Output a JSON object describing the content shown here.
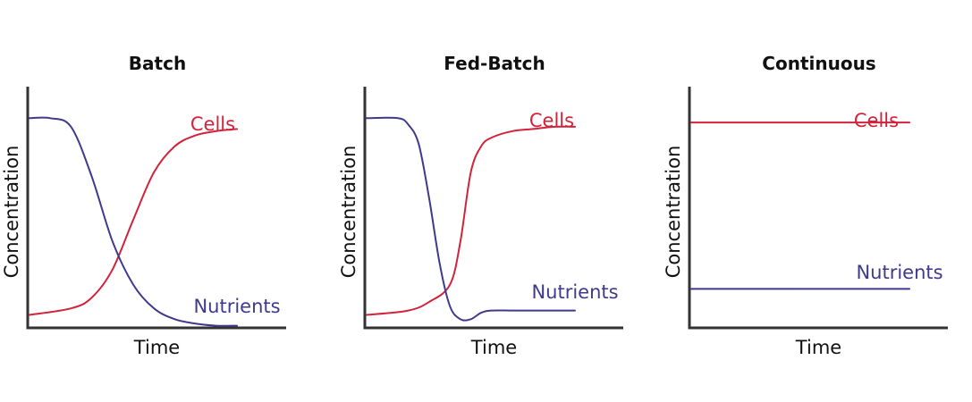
{
  "colors": {
    "cells": "#d2233a",
    "nutrients": "#3f3a8c",
    "axis": "#333333"
  },
  "chart_data": [
    {
      "type": "line",
      "title": "Batch",
      "xlabel": "Time",
      "ylabel": "Concentration",
      "grid": false,
      "series": [
        {
          "name": "Cells",
          "x": [
            0,
            0.2,
            0.3,
            0.4,
            0.5,
            0.6,
            0.7,
            0.8,
            0.9,
            1.0
          ],
          "y": [
            0.06,
            0.09,
            0.14,
            0.27,
            0.5,
            0.72,
            0.84,
            0.89,
            0.91,
            0.92
          ]
        },
        {
          "name": "Nutrients",
          "x": [
            0,
            0.1,
            0.2,
            0.3,
            0.4,
            0.5,
            0.6,
            0.7,
            0.8,
            0.9,
            1.0
          ],
          "y": [
            0.97,
            0.97,
            0.93,
            0.7,
            0.4,
            0.2,
            0.09,
            0.04,
            0.02,
            0.01,
            0.01
          ]
        }
      ]
    },
    {
      "type": "line",
      "title": "Fed-Batch",
      "xlabel": "Time",
      "ylabel": "Concentration",
      "grid": false,
      "series": [
        {
          "name": "Cells",
          "x": [
            0,
            0.2,
            0.3,
            0.4,
            0.45,
            0.5,
            0.55,
            0.6,
            0.7,
            0.8,
            0.9,
            1.0
          ],
          "y": [
            0.06,
            0.08,
            0.12,
            0.2,
            0.4,
            0.72,
            0.84,
            0.88,
            0.91,
            0.92,
            0.93,
            0.93
          ]
        },
        {
          "name": "Nutrients",
          "x": [
            0,
            0.15,
            0.2,
            0.25,
            0.3,
            0.35,
            0.4,
            0.45,
            0.5,
            0.55,
            0.6,
            0.7,
            0.8,
            1.0
          ],
          "y": [
            0.97,
            0.97,
            0.94,
            0.85,
            0.6,
            0.3,
            0.1,
            0.04,
            0.04,
            0.07,
            0.08,
            0.08,
            0.08,
            0.08
          ]
        }
      ]
    },
    {
      "type": "line",
      "title": "Continuous",
      "xlabel": "Time",
      "ylabel": "Concentration",
      "grid": false,
      "series": [
        {
          "name": "Cells",
          "x": [
            0,
            1.0
          ],
          "y": [
            0.95,
            0.95
          ]
        },
        {
          "name": "Nutrients",
          "x": [
            0,
            1.0
          ],
          "y": [
            0.18,
            0.18
          ]
        }
      ]
    }
  ]
}
